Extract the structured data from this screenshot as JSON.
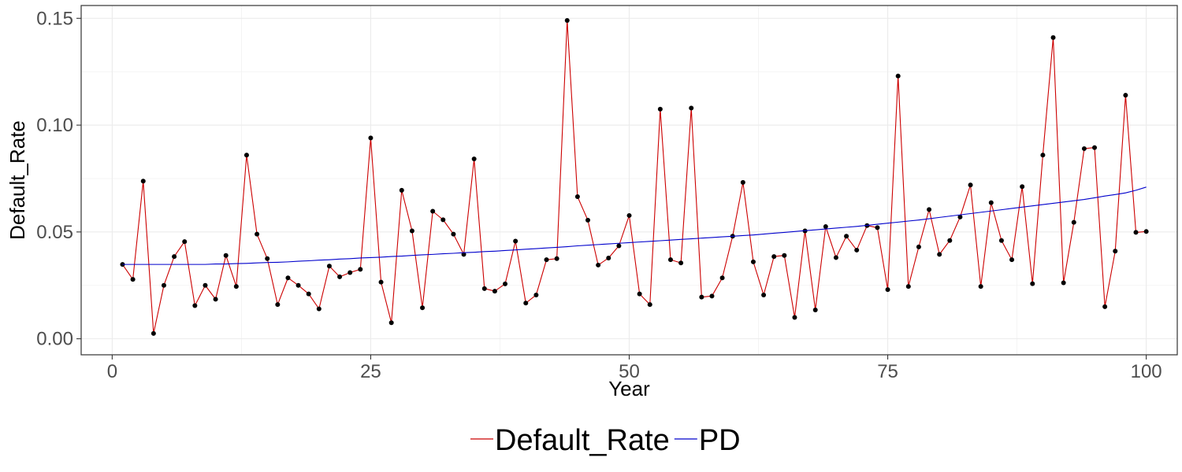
{
  "chart_data": {
    "type": "line",
    "title": "",
    "xlabel": "Year",
    "ylabel": "Default_Rate",
    "xlim": [
      -3,
      103
    ],
    "ylim": [
      -0.0075,
      0.156
    ],
    "x_ticks": [
      0,
      25,
      50,
      75,
      100
    ],
    "x_tick_labels": [
      "0",
      "25",
      "50",
      "75",
      "100"
    ],
    "y_ticks": [
      0,
      0.05,
      0.1,
      0.15
    ],
    "y_tick_labels": [
      "0.00",
      "0.05",
      "0.10",
      "0.15"
    ],
    "grid": true,
    "legend_position": "bottom",
    "x": [
      1,
      2,
      3,
      4,
      5,
      6,
      7,
      8,
      9,
      10,
      11,
      12,
      13,
      14,
      15,
      16,
      17,
      18,
      19,
      20,
      21,
      22,
      23,
      24,
      25,
      26,
      27,
      28,
      29,
      30,
      31,
      32,
      33,
      34,
      35,
      36,
      37,
      38,
      39,
      40,
      41,
      42,
      43,
      44,
      45,
      46,
      47,
      48,
      49,
      50,
      51,
      52,
      53,
      54,
      55,
      56,
      57,
      58,
      59,
      60,
      61,
      62,
      63,
      64,
      65,
      66,
      67,
      68,
      69,
      70,
      71,
      72,
      73,
      74,
      75,
      76,
      77,
      78,
      79,
      80,
      81,
      82,
      83,
      84,
      85,
      86,
      87,
      88,
      89,
      90,
      91,
      92,
      93,
      94,
      95,
      96,
      97,
      98,
      99,
      100
    ],
    "series": [
      {
        "name": "Default_Rate",
        "color": "#cc0000",
        "markers": true,
        "marker_color": "#000000",
        "values": [
          0.0348,
          0.0278,
          0.0738,
          0.0025,
          0.025,
          0.0385,
          0.0455,
          0.0155,
          0.025,
          0.0185,
          0.039,
          0.0245,
          0.086,
          0.049,
          0.0375,
          0.016,
          0.0285,
          0.025,
          0.021,
          0.014,
          0.034,
          0.029,
          0.031,
          0.0325,
          0.094,
          0.0265,
          0.0075,
          0.0695,
          0.0505,
          0.0145,
          0.0597,
          0.0557,
          0.049,
          0.0395,
          0.0842,
          0.0235,
          0.0223,
          0.0257,
          0.0457,
          0.0167,
          0.0205,
          0.037,
          0.0375,
          0.149,
          0.0665,
          0.0555,
          0.0345,
          0.0378,
          0.0435,
          0.0577,
          0.021,
          0.016,
          0.1075,
          0.037,
          0.0355,
          0.108,
          0.0195,
          0.02,
          0.0285,
          0.048,
          0.0732,
          0.036,
          0.0205,
          0.0385,
          0.039,
          0.01,
          0.0505,
          0.0135,
          0.0525,
          0.038,
          0.048,
          0.0415,
          0.053,
          0.052,
          0.023,
          0.123,
          0.0245,
          0.043,
          0.0605,
          0.0395,
          0.046,
          0.057,
          0.072,
          0.0245,
          0.0637,
          0.046,
          0.037,
          0.0712,
          0.0258,
          0.086,
          0.141,
          0.0262,
          0.0545,
          0.089,
          0.0895,
          0.015,
          0.041,
          0.114,
          0.0498,
          0.0502
        ]
      },
      {
        "name": "PD",
        "color": "#0000cc",
        "markers": false,
        "values": [
          0.0348,
          0.0348,
          0.0348,
          0.0348,
          0.0348,
          0.0348,
          0.0348,
          0.0348,
          0.0348,
          0.035,
          0.035,
          0.0352,
          0.0353,
          0.0355,
          0.0357,
          0.0358,
          0.036,
          0.0363,
          0.0365,
          0.0368,
          0.037,
          0.0373,
          0.0375,
          0.0378,
          0.038,
          0.0382,
          0.0385,
          0.0387,
          0.039,
          0.0393,
          0.0395,
          0.0398,
          0.04,
          0.0403,
          0.0405,
          0.0408,
          0.041,
          0.0413,
          0.0416,
          0.0419,
          0.0422,
          0.0425,
          0.0428,
          0.0431,
          0.0435,
          0.0438,
          0.0441,
          0.0444,
          0.0447,
          0.045,
          0.0453,
          0.0456,
          0.0459,
          0.0462,
          0.0465,
          0.0468,
          0.0471,
          0.0474,
          0.0477,
          0.048,
          0.0483,
          0.0486,
          0.049,
          0.0494,
          0.0498,
          0.0502,
          0.0506,
          0.051,
          0.0514,
          0.0518,
          0.0522,
          0.0526,
          0.0531,
          0.0536,
          0.0541,
          0.0546,
          0.0551,
          0.0556,
          0.0562,
          0.0568,
          0.0574,
          0.058,
          0.0586,
          0.0592,
          0.0598,
          0.0604,
          0.061,
          0.0616,
          0.0622,
          0.0628,
          0.0634,
          0.064,
          0.0646,
          0.0652,
          0.066,
          0.0668,
          0.0675,
          0.0683,
          0.0695,
          0.071
        ]
      }
    ]
  }
}
